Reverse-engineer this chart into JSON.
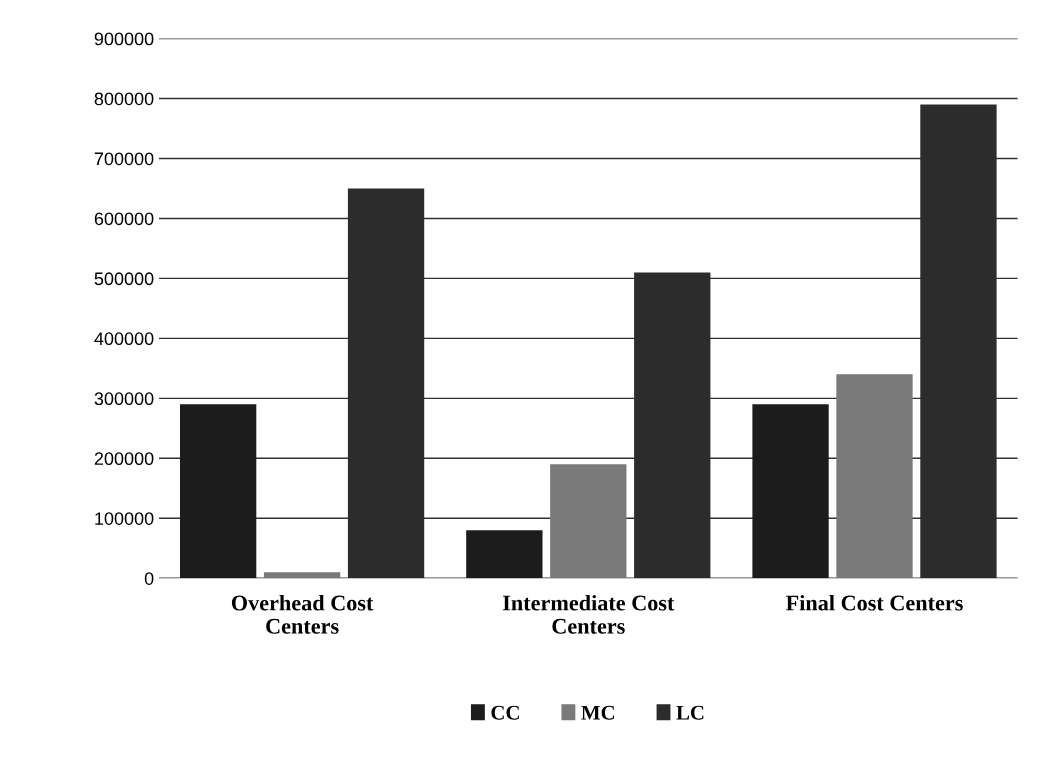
{
  "chart_data": {
    "type": "bar",
    "categories": [
      "Overhead Cost\nCenters",
      "Intermediate Cost\nCenters",
      "Final Cost Centers"
    ],
    "series": [
      {
        "name": "CC",
        "color": "#1c1c1c",
        "values": [
          290000,
          80000,
          290000
        ]
      },
      {
        "name": "MC",
        "color": "#7a7a7a",
        "values": [
          10000,
          190000,
          340000
        ]
      },
      {
        "name": "LC",
        "color": "#2c2c2c",
        "values": [
          650000,
          510000,
          790000
        ]
      }
    ],
    "ylim": [
      0,
      900000
    ],
    "yticks": [
      0,
      100000,
      200000,
      300000,
      400000,
      500000,
      600000,
      700000,
      800000,
      900000
    ],
    "grid": "y",
    "legend": "bottom"
  }
}
